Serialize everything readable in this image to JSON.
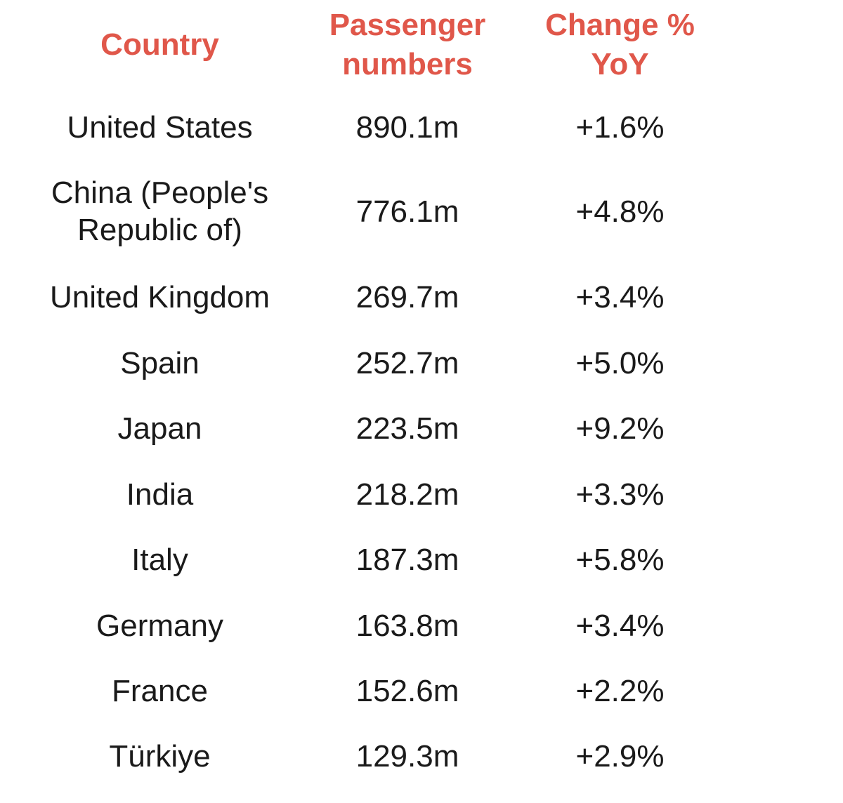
{
  "chart_data": {
    "type": "table",
    "columns": [
      "Country",
      "Passenger numbers",
      "Change % YoY"
    ],
    "headers": {
      "country_line1": "Country",
      "passengers_line1": "Passenger",
      "passengers_line2": "numbers",
      "change_line1": "Change %",
      "change_line2": "YoY"
    },
    "rows": [
      {
        "country": "United States",
        "passengers": "890.1m",
        "change": "+1.6%"
      },
      {
        "country": "China (People's Republic of)",
        "passengers": "776.1m",
        "change": "+4.8%"
      },
      {
        "country": "United Kingdom",
        "passengers": "269.7m",
        "change": "+3.4%"
      },
      {
        "country": "Spain",
        "passengers": "252.7m",
        "change": "+5.0%"
      },
      {
        "country": "Japan",
        "passengers": "223.5m",
        "change": "+9.2%"
      },
      {
        "country": "India",
        "passengers": "218.2m",
        "change": "+3.3%"
      },
      {
        "country": "Italy",
        "passengers": "187.3m",
        "change": "+5.8%"
      },
      {
        "country": "Germany",
        "passengers": "163.8m",
        "change": "+3.4%"
      },
      {
        "country": "France",
        "passengers": "152.6m",
        "change": "+2.2%"
      },
      {
        "country": "Türkiye",
        "passengers": "129.3m",
        "change": "+2.9%"
      }
    ],
    "header_color": "#e0574a",
    "text_color": "#1a1a1a"
  }
}
